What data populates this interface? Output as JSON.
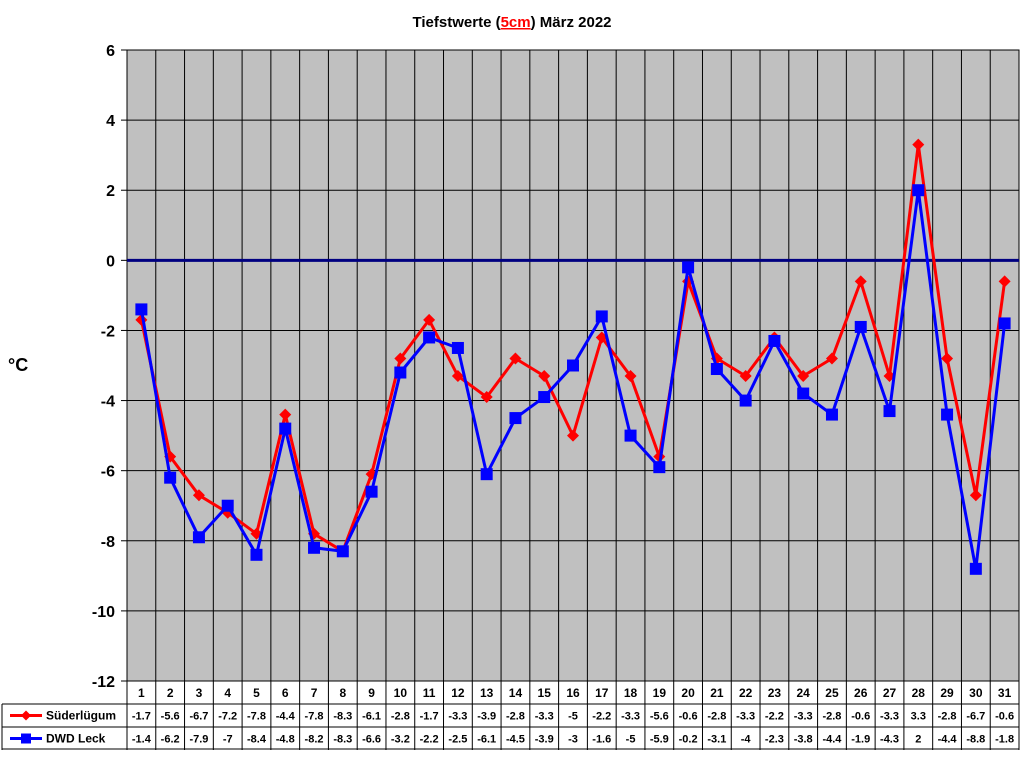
{
  "chart_data": {
    "type": "line",
    "title_parts": [
      "Tiefstwerte (",
      "5cm",
      ") März 2022"
    ],
    "ylabel": "°C",
    "ylim": [
      -12,
      6
    ],
    "yticks": [
      6,
      4,
      2,
      0,
      -2,
      -4,
      -6,
      -8,
      -10,
      -12
    ],
    "categories": [
      "1",
      "2",
      "3",
      "4",
      "5",
      "6",
      "7",
      "8",
      "9",
      "10",
      "11",
      "12",
      "13",
      "14",
      "15",
      "16",
      "17",
      "18",
      "19",
      "20",
      "21",
      "22",
      "23",
      "24",
      "25",
      "26",
      "27",
      "28",
      "29",
      "30",
      "31"
    ],
    "grid": true,
    "legend": "bottom-left (data table)",
    "reference_line": 0,
    "series": [
      {
        "name": "Süderlügum",
        "color": "#ff0000",
        "marker": "diamond",
        "values": [
          -1.7,
          -5.6,
          -6.7,
          -7.2,
          -7.8,
          -4.4,
          -7.8,
          -8.3,
          -6.1,
          -2.8,
          -1.7,
          -3.3,
          -3.9,
          -2.8,
          -3.3,
          -5,
          -2.2,
          -3.3,
          -5.6,
          -0.6,
          -2.8,
          -3.3,
          -2.2,
          -3.3,
          -2.8,
          -0.6,
          -3.3,
          3.3,
          -2.8,
          -6.7,
          -0.6
        ]
      },
      {
        "name": "DWD Leck",
        "color": "#0000ff",
        "marker": "square",
        "values": [
          -1.4,
          -6.2,
          -7.9,
          -7,
          -8.4,
          -4.8,
          -8.2,
          -8.3,
          -6.6,
          -3.2,
          -2.2,
          -2.5,
          -6.1,
          -4.5,
          -3.9,
          -3,
          -1.6,
          -5,
          -5.9,
          -0.2,
          -3.1,
          -4,
          -2.3,
          -3.8,
          -4.4,
          -1.9,
          -4.3,
          2,
          -4.4,
          -8.8,
          -1.8
        ]
      }
    ]
  },
  "colors": {
    "plot_bg": "#c0c0c0",
    "zero_line": "#000080",
    "title_highlight": "#ff0000"
  }
}
